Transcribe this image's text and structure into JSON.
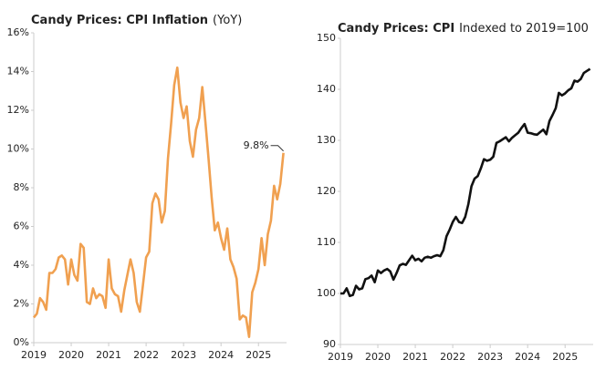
{
  "chart_data": [
    {
      "type": "line",
      "title": "Candy Prices: CPI Inflation",
      "subtitle": "(YoY)",
      "annotation": "9.8%",
      "x": [
        2019,
        2019.083,
        2019.167,
        2019.25,
        2019.333,
        2019.417,
        2019.5,
        2019.583,
        2019.667,
        2019.75,
        2019.833,
        2019.917,
        2020,
        2020.083,
        2020.167,
        2020.25,
        2020.333,
        2020.417,
        2020.5,
        2020.583,
        2020.667,
        2020.75,
        2020.833,
        2020.917,
        2021,
        2021.083,
        2021.167,
        2021.25,
        2021.333,
        2021.417,
        2021.5,
        2021.583,
        2021.667,
        2021.75,
        2021.833,
        2021.917,
        2022,
        2022.083,
        2022.167,
        2022.25,
        2022.333,
        2022.417,
        2022.5,
        2022.583,
        2022.667,
        2022.75,
        2022.833,
        2022.917,
        2023,
        2023.083,
        2023.167,
        2023.25,
        2023.333,
        2023.417,
        2023.5,
        2023.583,
        2023.667,
        2023.75,
        2023.833,
        2023.917,
        2024,
        2024.083,
        2024.167,
        2024.25,
        2024.333,
        2024.417,
        2024.5,
        2024.583,
        2024.667,
        2024.75,
        2024.833,
        2024.917,
        2025,
        2025.083,
        2025.167,
        2025.25,
        2025.333,
        2025.417,
        2025.5,
        2025.583,
        2025.667
      ],
      "series": [
        {
          "color": "#f0a050",
          "values": [
            1.3,
            1.5,
            2.3,
            2.1,
            1.7,
            3.6,
            3.6,
            3.8,
            4.4,
            4.5,
            4.3,
            3.0,
            4.3,
            3.5,
            3.2,
            5.1,
            4.9,
            2.1,
            2.0,
            2.8,
            2.3,
            2.5,
            2.4,
            1.8,
            4.3,
            2.8,
            2.5,
            2.4,
            1.6,
            2.7,
            3.5,
            4.3,
            3.6,
            2.1,
            1.6,
            3.0,
            4.4,
            4.7,
            7.2,
            7.7,
            7.4,
            6.2,
            6.8,
            9.5,
            11.3,
            13.3,
            14.2,
            12.4,
            11.6,
            12.2,
            10.4,
            9.6,
            11.0,
            11.6,
            13.2,
            11.4,
            9.5,
            7.5,
            5.8,
            6.2,
            5.4,
            4.8,
            5.9,
            4.3,
            3.9,
            3.3,
            1.2,
            1.4,
            1.3,
            0.3,
            2.6,
            3.1,
            3.8,
            5.4,
            4.0,
            5.6,
            6.3,
            8.1,
            7.4,
            8.2,
            9.8
          ]
        }
      ],
      "xlim": [
        2019,
        2025.75
      ],
      "xticks": [
        2019,
        2020,
        2021,
        2022,
        2023,
        2024,
        2025
      ],
      "ylim": [
        0,
        16
      ],
      "yticks": [
        {
          "value": 0,
          "label": "0%"
        },
        {
          "value": 2,
          "label": "2%"
        },
        {
          "value": 4,
          "label": "4%"
        },
        {
          "value": 6,
          "label": "6%"
        },
        {
          "value": 8,
          "label": "8%"
        },
        {
          "value": 10,
          "label": "10%"
        },
        {
          "value": 12,
          "label": "12%"
        },
        {
          "value": 14,
          "label": "14%"
        },
        {
          "value": 16,
          "label": "16%"
        }
      ]
    },
    {
      "type": "line",
      "title": "Candy Prices: CPI",
      "subtitle": "Indexed to 2019=100",
      "x": [
        2019,
        2019.083,
        2019.167,
        2019.25,
        2019.333,
        2019.417,
        2019.5,
        2019.583,
        2019.667,
        2019.75,
        2019.833,
        2019.917,
        2020,
        2020.083,
        2020.167,
        2020.25,
        2020.333,
        2020.417,
        2020.5,
        2020.583,
        2020.667,
        2020.75,
        2020.833,
        2020.917,
        2021,
        2021.083,
        2021.167,
        2021.25,
        2021.333,
        2021.417,
        2021.5,
        2021.583,
        2021.667,
        2021.75,
        2021.833,
        2021.917,
        2022,
        2022.083,
        2022.167,
        2022.25,
        2022.333,
        2022.417,
        2022.5,
        2022.583,
        2022.667,
        2022.75,
        2022.833,
        2022.917,
        2023,
        2023.083,
        2023.167,
        2023.25,
        2023.333,
        2023.417,
        2023.5,
        2023.583,
        2023.667,
        2023.75,
        2023.833,
        2023.917,
        2024,
        2024.083,
        2024.167,
        2024.25,
        2024.333,
        2024.417,
        2024.5,
        2024.583,
        2024.667,
        2024.75,
        2024.833,
        2024.917,
        2025,
        2025.083,
        2025.167,
        2025.25,
        2025.333,
        2025.417,
        2025.5,
        2025.583,
        2025.667
      ],
      "series": [
        {
          "color": "#111111",
          "values": [
            100,
            100,
            101,
            99.5,
            99.7,
            101.5,
            100.8,
            101,
            102.8,
            103,
            103.5,
            102.2,
            104.5,
            104,
            104.5,
            104.8,
            104.3,
            102.7,
            104,
            105.5,
            105.8,
            105.6,
            106.5,
            107.4,
            106.5,
            106.8,
            106.3,
            107.0,
            107.2,
            107.0,
            107.3,
            107.5,
            107.3,
            108.5,
            111.2,
            112.5,
            114,
            115,
            114,
            113.8,
            115,
            117.5,
            121,
            122.5,
            123,
            124.5,
            126.3,
            126.0,
            126.2,
            126.8,
            129.5,
            129.8,
            130.2,
            130.6,
            129.8,
            130.5,
            131,
            131.5,
            132.4,
            133.2,
            131.5,
            131.4,
            131.2,
            131.1,
            131.6,
            132.1,
            131.2,
            133.8,
            135,
            136.3,
            139.3,
            138.8,
            139.2,
            139.8,
            140.2,
            141.7,
            141.5,
            142.0,
            143.2,
            143.6,
            144.0
          ]
        }
      ],
      "xlim": [
        2019,
        2025.75
      ],
      "xticks": [
        2019,
        2020,
        2021,
        2022,
        2023,
        2024,
        2025
      ],
      "ylim": [
        90,
        150
      ],
      "yticks": [
        90,
        100,
        110,
        120,
        130,
        140,
        150
      ]
    }
  ]
}
